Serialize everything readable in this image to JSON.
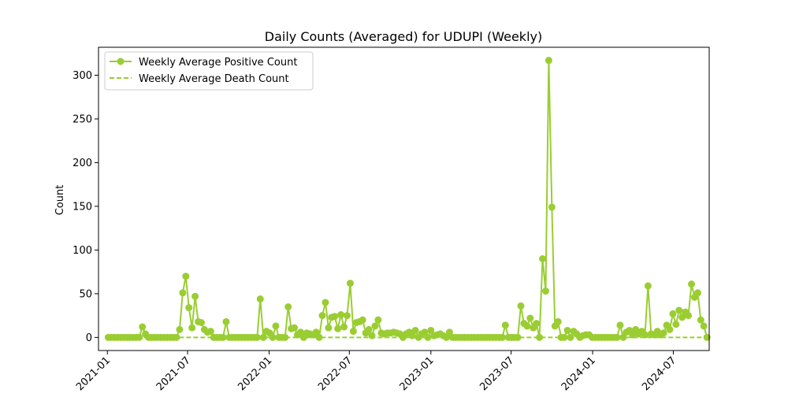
{
  "chart_data": {
    "type": "line",
    "title": "Daily Counts (Averaged) for UDUPI (Weekly)",
    "xlabel": "",
    "ylabel": "Count",
    "x_axis": {
      "ticks": [
        "2021-01",
        "2021-07",
        "2022-01",
        "2022-07",
        "2023-01",
        "2023-07",
        "2024-01",
        "2024-07"
      ],
      "range": [
        "2020-12-12",
        "2024-09-20"
      ]
    },
    "y_axis": {
      "ticks": [
        "0",
        "50",
        "100",
        "150",
        "200",
        "250",
        "300"
      ],
      "ylim": [
        -15,
        332
      ]
    },
    "legend": {
      "location": "top-left"
    },
    "grid": false,
    "series": [
      {
        "name": "Weekly Average Positive Count",
        "color": "#9acd32",
        "style": "solid",
        "marker": "circle",
        "points": [
          [
            "2021-01-03",
            0
          ],
          [
            "2021-01-10",
            0
          ],
          [
            "2021-01-17",
            0
          ],
          [
            "2021-01-24",
            0
          ],
          [
            "2021-01-31",
            0
          ],
          [
            "2021-02-07",
            0
          ],
          [
            "2021-02-14",
            0
          ],
          [
            "2021-02-21",
            0
          ],
          [
            "2021-02-28",
            0
          ],
          [
            "2021-03-07",
            0
          ],
          [
            "2021-03-14",
            0
          ],
          [
            "2021-03-21",
            12
          ],
          [
            "2021-03-28",
            4
          ],
          [
            "2021-04-04",
            0
          ],
          [
            "2021-04-11",
            0
          ],
          [
            "2021-04-18",
            0
          ],
          [
            "2021-04-25",
            0
          ],
          [
            "2021-05-02",
            0
          ],
          [
            "2021-05-09",
            0
          ],
          [
            "2021-05-16",
            0
          ],
          [
            "2021-05-23",
            0
          ],
          [
            "2021-05-30",
            0
          ],
          [
            "2021-06-06",
            0
          ],
          [
            "2021-06-13",
            9
          ],
          [
            "2021-06-20",
            51
          ],
          [
            "2021-06-27",
            70
          ],
          [
            "2021-07-04",
            34
          ],
          [
            "2021-07-11",
            11
          ],
          [
            "2021-07-18",
            47
          ],
          [
            "2021-07-25",
            18
          ],
          [
            "2021-08-01",
            17
          ],
          [
            "2021-08-08",
            9
          ],
          [
            "2021-08-15",
            6
          ],
          [
            "2021-08-22",
            7
          ],
          [
            "2021-08-29",
            0
          ],
          [
            "2021-09-05",
            0
          ],
          [
            "2021-09-12",
            0
          ],
          [
            "2021-09-19",
            0
          ],
          [
            "2021-09-26",
            18
          ],
          [
            "2021-10-03",
            0
          ],
          [
            "2021-10-10",
            0
          ],
          [
            "2021-10-17",
            0
          ],
          [
            "2021-10-24",
            0
          ],
          [
            "2021-10-31",
            0
          ],
          [
            "2021-11-07",
            0
          ],
          [
            "2021-11-14",
            0
          ],
          [
            "2021-11-21",
            0
          ],
          [
            "2021-11-28",
            0
          ],
          [
            "2021-12-05",
            0
          ],
          [
            "2021-12-12",
            44
          ],
          [
            "2021-12-19",
            0
          ],
          [
            "2021-12-26",
            7
          ],
          [
            "2022-01-02",
            5
          ],
          [
            "2022-01-09",
            0
          ],
          [
            "2022-01-16",
            13
          ],
          [
            "2022-01-23",
            0
          ],
          [
            "2022-01-30",
            0
          ],
          [
            "2022-02-06",
            0
          ],
          [
            "2022-02-13",
            35
          ],
          [
            "2022-02-20",
            10
          ],
          [
            "2022-02-27",
            11
          ],
          [
            "2022-03-06",
            3
          ],
          [
            "2022-03-13",
            6
          ],
          [
            "2022-03-20",
            0
          ],
          [
            "2022-03-27",
            5
          ],
          [
            "2022-04-03",
            4
          ],
          [
            "2022-04-10",
            3
          ],
          [
            "2022-04-17",
            6
          ],
          [
            "2022-04-24",
            0
          ],
          [
            "2022-05-01",
            25
          ],
          [
            "2022-05-08",
            40
          ],
          [
            "2022-05-15",
            11
          ],
          [
            "2022-05-22",
            23
          ],
          [
            "2022-05-29",
            24
          ],
          [
            "2022-06-05",
            10
          ],
          [
            "2022-06-12",
            26
          ],
          [
            "2022-06-19",
            12
          ],
          [
            "2022-06-26",
            25
          ],
          [
            "2022-07-03",
            62
          ],
          [
            "2022-07-10",
            7
          ],
          [
            "2022-07-17",
            17
          ],
          [
            "2022-07-24",
            18
          ],
          [
            "2022-07-31",
            20
          ],
          [
            "2022-08-07",
            5
          ],
          [
            "2022-08-14",
            9
          ],
          [
            "2022-08-21",
            2
          ],
          [
            "2022-08-28",
            13
          ],
          [
            "2022-09-04",
            20
          ],
          [
            "2022-09-11",
            5
          ],
          [
            "2022-09-18",
            4
          ],
          [
            "2022-09-25",
            5
          ],
          [
            "2022-10-02",
            5
          ],
          [
            "2022-10-09",
            6
          ],
          [
            "2022-10-16",
            5
          ],
          [
            "2022-10-23",
            4
          ],
          [
            "2022-10-30",
            0
          ],
          [
            "2022-11-06",
            4
          ],
          [
            "2022-11-13",
            6
          ],
          [
            "2022-11-20",
            2
          ],
          [
            "2022-11-27",
            8
          ],
          [
            "2022-12-04",
            0
          ],
          [
            "2022-12-11",
            4
          ],
          [
            "2022-12-18",
            6
          ],
          [
            "2022-12-25",
            0
          ],
          [
            "2023-01-01",
            8
          ],
          [
            "2023-01-08",
            2
          ],
          [
            "2023-01-15",
            3
          ],
          [
            "2023-01-22",
            4
          ],
          [
            "2023-01-29",
            2
          ],
          [
            "2023-02-05",
            0
          ],
          [
            "2023-02-12",
            6
          ],
          [
            "2023-02-19",
            0
          ],
          [
            "2023-02-26",
            0
          ],
          [
            "2023-03-05",
            0
          ],
          [
            "2023-03-12",
            0
          ],
          [
            "2023-03-19",
            0
          ],
          [
            "2023-03-26",
            0
          ],
          [
            "2023-04-02",
            0
          ],
          [
            "2023-04-09",
            0
          ],
          [
            "2023-04-16",
            0
          ],
          [
            "2023-04-23",
            0
          ],
          [
            "2023-04-30",
            0
          ],
          [
            "2023-05-07",
            0
          ],
          [
            "2023-05-14",
            0
          ],
          [
            "2023-05-21",
            0
          ],
          [
            "2023-05-28",
            0
          ],
          [
            "2023-06-04",
            0
          ],
          [
            "2023-06-11",
            0
          ],
          [
            "2023-06-18",
            14
          ],
          [
            "2023-06-25",
            0
          ],
          [
            "2023-07-02",
            0
          ],
          [
            "2023-07-09",
            0
          ],
          [
            "2023-07-16",
            0
          ],
          [
            "2023-07-23",
            36
          ],
          [
            "2023-07-30",
            16
          ],
          [
            "2023-08-06",
            13
          ],
          [
            "2023-08-13",
            22
          ],
          [
            "2023-08-20",
            11
          ],
          [
            "2023-08-27",
            16
          ],
          [
            "2023-09-03",
            0
          ],
          [
            "2023-09-10",
            90
          ],
          [
            "2023-09-17",
            53
          ],
          [
            "2023-09-24",
            317
          ],
          [
            "2023-10-01",
            149
          ],
          [
            "2023-10-08",
            13
          ],
          [
            "2023-10-15",
            18
          ],
          [
            "2023-10-22",
            0
          ],
          [
            "2023-10-29",
            0
          ],
          [
            "2023-11-05",
            8
          ],
          [
            "2023-11-12",
            0
          ],
          [
            "2023-11-19",
            7
          ],
          [
            "2023-11-26",
            4
          ],
          [
            "2023-12-03",
            0
          ],
          [
            "2023-12-10",
            2
          ],
          [
            "2023-12-17",
            3
          ],
          [
            "2023-12-24",
            3
          ],
          [
            "2023-12-31",
            0
          ],
          [
            "2024-01-07",
            0
          ],
          [
            "2024-01-14",
            0
          ],
          [
            "2024-01-21",
            0
          ],
          [
            "2024-01-28",
            0
          ],
          [
            "2024-02-04",
            0
          ],
          [
            "2024-02-11",
            0
          ],
          [
            "2024-02-18",
            0
          ],
          [
            "2024-02-25",
            0
          ],
          [
            "2024-03-03",
            14
          ],
          [
            "2024-03-10",
            0
          ],
          [
            "2024-03-17",
            6
          ],
          [
            "2024-03-24",
            8
          ],
          [
            "2024-03-31",
            3
          ],
          [
            "2024-04-07",
            9
          ],
          [
            "2024-04-14",
            4
          ],
          [
            "2024-04-21",
            7
          ],
          [
            "2024-04-28",
            3
          ],
          [
            "2024-05-05",
            59
          ],
          [
            "2024-05-12",
            4
          ],
          [
            "2024-05-19",
            3
          ],
          [
            "2024-05-26",
            7
          ],
          [
            "2024-06-02",
            3
          ],
          [
            "2024-06-09",
            5
          ],
          [
            "2024-06-16",
            14
          ],
          [
            "2024-06-23",
            9
          ],
          [
            "2024-06-30",
            27
          ],
          [
            "2024-07-07",
            15
          ],
          [
            "2024-07-14",
            31
          ],
          [
            "2024-07-21",
            23
          ],
          [
            "2024-07-28",
            29
          ],
          [
            "2024-08-04",
            25
          ],
          [
            "2024-08-11",
            61
          ],
          [
            "2024-08-18",
            46
          ],
          [
            "2024-08-25",
            51
          ],
          [
            "2024-09-01",
            20
          ],
          [
            "2024-09-08",
            13
          ],
          [
            "2024-09-15",
            0
          ]
        ]
      },
      {
        "name": "Weekly Average Death Count",
        "color": "#9acd32",
        "style": "dashed",
        "marker": "none",
        "points": [
          [
            "2021-01-03",
            0
          ],
          [
            "2024-09-15",
            0
          ]
        ]
      }
    ]
  }
}
